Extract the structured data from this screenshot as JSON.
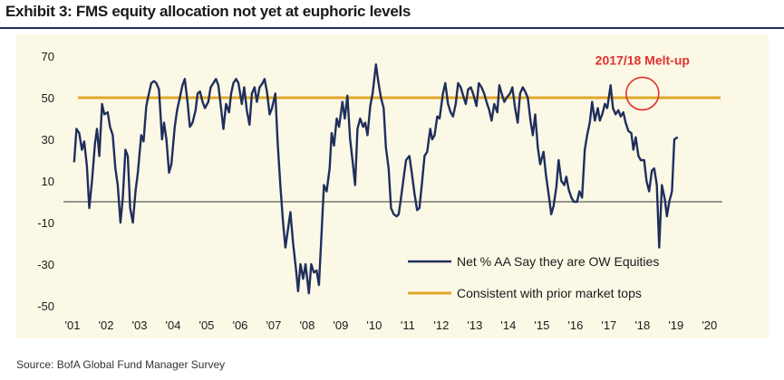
{
  "title": "Exhibit 3: FMS equity allocation not yet at euphoric levels",
  "source": "Source:  BofA Global Fund Manager Survey",
  "chart_data": {
    "type": "line",
    "title": "Exhibit 3: FMS equity allocation not yet at euphoric levels",
    "xlabel": "",
    "ylabel": "",
    "ylim": [
      -50,
      70
    ],
    "xlim": [
      2001.0,
      2020.33
    ],
    "yticks": [
      70,
      50,
      30,
      10,
      -10,
      -30,
      -50
    ],
    "xtick_labels": [
      "'01",
      "'02",
      "'03",
      "'04",
      "'05",
      "'06",
      "'07",
      "'08",
      "'09",
      "'10",
      "'11",
      "'12",
      "'13",
      "'14",
      "'15",
      "'16",
      "'17",
      "'18",
      "'19",
      "'20"
    ],
    "xtick_values": [
      2001,
      2002,
      2003,
      2004,
      2005,
      2006,
      2007,
      2008,
      2009,
      2010,
      2011,
      2012,
      2013,
      2014,
      2015,
      2016,
      2017,
      2018,
      2019,
      2020
    ],
    "zero_line": 0,
    "legend_position": "bottom-right",
    "series": [
      {
        "name": "Net % AA Say they are OW Equities",
        "color": "#1f2f5c",
        "points": [
          [
            2001.05,
            19
          ],
          [
            2001.12,
            35
          ],
          [
            2001.2,
            33
          ],
          [
            2001.28,
            25
          ],
          [
            2001.35,
            29
          ],
          [
            2001.43,
            17
          ],
          [
            2001.5,
            -3
          ],
          [
            2001.58,
            10
          ],
          [
            2001.67,
            28
          ],
          [
            2001.73,
            35
          ],
          [
            2001.8,
            22
          ],
          [
            2001.88,
            47
          ],
          [
            2001.95,
            42
          ],
          [
            2002.05,
            43
          ],
          [
            2002.12,
            36
          ],
          [
            2002.2,
            32
          ],
          [
            2002.28,
            16
          ],
          [
            2002.35,
            8
          ],
          [
            2002.43,
            -10
          ],
          [
            2002.5,
            2
          ],
          [
            2002.58,
            25
          ],
          [
            2002.65,
            22
          ],
          [
            2002.72,
            -3
          ],
          [
            2002.8,
            -10
          ],
          [
            2002.88,
            5
          ],
          [
            2002.95,
            14
          ],
          [
            2003.05,
            32
          ],
          [
            2003.12,
            29
          ],
          [
            2003.2,
            46
          ],
          [
            2003.28,
            52
          ],
          [
            2003.35,
            57
          ],
          [
            2003.43,
            58
          ],
          [
            2003.5,
            57
          ],
          [
            2003.58,
            54
          ],
          [
            2003.67,
            30
          ],
          [
            2003.73,
            38
          ],
          [
            2003.8,
            30
          ],
          [
            2003.88,
            14
          ],
          [
            2003.95,
            18
          ],
          [
            2004.05,
            36
          ],
          [
            2004.12,
            44
          ],
          [
            2004.2,
            50
          ],
          [
            2004.28,
            56
          ],
          [
            2004.35,
            59
          ],
          [
            2004.43,
            48
          ],
          [
            2004.5,
            36
          ],
          [
            2004.58,
            38
          ],
          [
            2004.67,
            44
          ],
          [
            2004.73,
            52
          ],
          [
            2004.8,
            53
          ],
          [
            2004.88,
            48
          ],
          [
            2004.95,
            45
          ],
          [
            2005.05,
            48
          ],
          [
            2005.12,
            55
          ],
          [
            2005.2,
            57
          ],
          [
            2005.28,
            59
          ],
          [
            2005.35,
            56
          ],
          [
            2005.43,
            45
          ],
          [
            2005.5,
            35
          ],
          [
            2005.58,
            47
          ],
          [
            2005.67,
            43
          ],
          [
            2005.73,
            52
          ],
          [
            2005.8,
            57
          ],
          [
            2005.88,
            59
          ],
          [
            2005.95,
            57
          ],
          [
            2006.05,
            47
          ],
          [
            2006.12,
            55
          ],
          [
            2006.2,
            44
          ],
          [
            2006.28,
            37
          ],
          [
            2006.35,
            52
          ],
          [
            2006.43,
            55
          ],
          [
            2006.5,
            48
          ],
          [
            2006.58,
            55
          ],
          [
            2006.67,
            57
          ],
          [
            2006.73,
            59
          ],
          [
            2006.8,
            53
          ],
          [
            2006.88,
            42
          ],
          [
            2006.95,
            45
          ],
          [
            2007.05,
            52
          ],
          [
            2007.12,
            28
          ],
          [
            2007.2,
            8
          ],
          [
            2007.28,
            -10
          ],
          [
            2007.35,
            -22
          ],
          [
            2007.43,
            -13
          ],
          [
            2007.5,
            -5
          ],
          [
            2007.58,
            -20
          ],
          [
            2007.67,
            -33
          ],
          [
            2007.73,
            -43
          ],
          [
            2007.8,
            -30
          ],
          [
            2007.88,
            -37
          ],
          [
            2007.95,
            -30
          ],
          [
            2008.05,
            -44
          ],
          [
            2008.12,
            -30
          ],
          [
            2008.2,
            -34
          ],
          [
            2008.28,
            -33
          ],
          [
            2008.35,
            -40
          ],
          [
            2008.43,
            -15
          ],
          [
            2008.5,
            8
          ],
          [
            2008.58,
            5
          ],
          [
            2008.67,
            16
          ],
          [
            2008.73,
            33
          ],
          [
            2008.8,
            27
          ],
          [
            2008.88,
            40
          ],
          [
            2008.95,
            36
          ],
          [
            2009.05,
            48
          ],
          [
            2009.12,
            40
          ],
          [
            2009.2,
            51
          ],
          [
            2009.28,
            30
          ],
          [
            2009.35,
            20
          ],
          [
            2009.43,
            8
          ],
          [
            2009.5,
            35
          ],
          [
            2009.58,
            40
          ],
          [
            2009.67,
            36
          ],
          [
            2009.73,
            38
          ],
          [
            2009.8,
            32
          ],
          [
            2009.88,
            46
          ],
          [
            2009.95,
            52
          ],
          [
            2010.05,
            66
          ],
          [
            2010.12,
            58
          ],
          [
            2010.2,
            50
          ],
          [
            2010.28,
            45
          ],
          [
            2010.35,
            26
          ],
          [
            2010.43,
            16
          ],
          [
            2010.5,
            -3
          ],
          [
            2010.58,
            -6
          ],
          [
            2010.67,
            -7
          ],
          [
            2010.73,
            -6
          ],
          [
            2010.8,
            2
          ],
          [
            2010.88,
            12
          ],
          [
            2010.95,
            20
          ],
          [
            2011.05,
            22
          ],
          [
            2011.12,
            14
          ],
          [
            2011.2,
            4
          ],
          [
            2011.28,
            -4
          ],
          [
            2011.35,
            -3
          ],
          [
            2011.43,
            10
          ],
          [
            2011.5,
            22
          ],
          [
            2011.58,
            24
          ],
          [
            2011.67,
            35
          ],
          [
            2011.73,
            30
          ],
          [
            2011.8,
            32
          ],
          [
            2011.88,
            41
          ],
          [
            2011.95,
            40
          ],
          [
            2012.05,
            52
          ],
          [
            2012.12,
            57
          ],
          [
            2012.2,
            47
          ],
          [
            2012.28,
            43
          ],
          [
            2012.35,
            41
          ],
          [
            2012.43,
            47
          ],
          [
            2012.5,
            57
          ],
          [
            2012.58,
            55
          ],
          [
            2012.67,
            50
          ],
          [
            2012.73,
            47
          ],
          [
            2012.8,
            54
          ],
          [
            2012.88,
            55
          ],
          [
            2012.95,
            52
          ],
          [
            2013.05,
            46
          ],
          [
            2013.12,
            57
          ],
          [
            2013.2,
            55
          ],
          [
            2013.28,
            52
          ],
          [
            2013.35,
            48
          ],
          [
            2013.43,
            44
          ],
          [
            2013.5,
            39
          ],
          [
            2013.58,
            47
          ],
          [
            2013.67,
            43
          ],
          [
            2013.73,
            56
          ],
          [
            2013.8,
            52
          ],
          [
            2013.88,
            48
          ],
          [
            2013.95,
            50
          ],
          [
            2014.05,
            52
          ],
          [
            2014.12,
            55
          ],
          [
            2014.2,
            45
          ],
          [
            2014.28,
            38
          ],
          [
            2014.35,
            52
          ],
          [
            2014.43,
            55
          ],
          [
            2014.5,
            53
          ],
          [
            2014.58,
            50
          ],
          [
            2014.67,
            38
          ],
          [
            2014.73,
            32
          ],
          [
            2014.8,
            42
          ],
          [
            2014.88,
            26
          ],
          [
            2014.95,
            18
          ],
          [
            2015.05,
            24
          ],
          [
            2015.12,
            13
          ],
          [
            2015.2,
            4
          ],
          [
            2015.28,
            -6
          ],
          [
            2015.35,
            -2
          ],
          [
            2015.43,
            7
          ],
          [
            2015.5,
            20
          ],
          [
            2015.58,
            10
          ],
          [
            2015.67,
            8
          ],
          [
            2015.73,
            12
          ],
          [
            2015.8,
            6
          ],
          [
            2015.88,
            2
          ],
          [
            2015.95,
            0
          ],
          [
            2016.05,
            0
          ],
          [
            2016.12,
            5
          ],
          [
            2016.2,
            2
          ],
          [
            2016.28,
            25
          ],
          [
            2016.35,
            32
          ],
          [
            2016.43,
            38
          ],
          [
            2016.5,
            48
          ],
          [
            2016.58,
            39
          ],
          [
            2016.67,
            45
          ],
          [
            2016.73,
            39
          ],
          [
            2016.8,
            42
          ],
          [
            2016.88,
            47
          ],
          [
            2016.95,
            45
          ],
          [
            2017.05,
            56
          ],
          [
            2017.12,
            45
          ],
          [
            2017.2,
            42
          ],
          [
            2017.28,
            44
          ],
          [
            2017.35,
            41
          ],
          [
            2017.43,
            43
          ],
          [
            2017.5,
            38
          ],
          [
            2017.58,
            34
          ],
          [
            2017.67,
            33
          ],
          [
            2017.73,
            25
          ],
          [
            2017.8,
            31
          ],
          [
            2017.88,
            22
          ],
          [
            2017.95,
            20
          ],
          [
            2018.05,
            20
          ],
          [
            2018.12,
            10
          ],
          [
            2018.2,
            5
          ],
          [
            2018.28,
            15
          ],
          [
            2018.35,
            16
          ],
          [
            2018.43,
            8
          ],
          [
            2018.5,
            -22
          ],
          [
            2018.58,
            8
          ],
          [
            2018.67,
            1
          ],
          [
            2018.73,
            -7
          ],
          [
            2018.8,
            0
          ],
          [
            2018.88,
            5
          ],
          [
            2018.95,
            30
          ],
          [
            2019.05,
            31
          ]
        ]
      },
      {
        "name": "Consistent with prior market tops",
        "color": "#e0a82a",
        "value": 50
      }
    ],
    "annotations": [
      {
        "text": "2017/18 Melt-up",
        "x": 2018.0,
        "y": 68,
        "color": "#e1312e"
      },
      {
        "shape": "circle",
        "x": 2018.0,
        "y": 52,
        "color": "#e1312e"
      }
    ]
  }
}
